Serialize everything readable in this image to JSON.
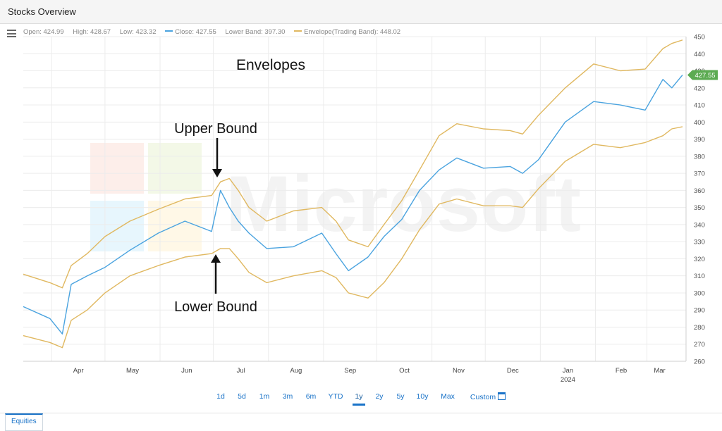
{
  "app": {
    "title": "Stocks Overview"
  },
  "info_bar": {
    "open": "Open: 424.99",
    "high": "High: 428.67",
    "low": "Low: 423.32",
    "close": "Close: 427.55",
    "lower_band": "Lower Band: 397.30",
    "envelope": "Envelope(Trading Band): 448.02"
  },
  "colors": {
    "close_line": "#4aa3df",
    "envelope": "#e0b860",
    "price_tag": "#5cab52",
    "link": "#1a73c8"
  },
  "annotations": {
    "heading": "Envelopes",
    "upper": "Upper Bound",
    "lower": "Lower Bound"
  },
  "watermark": "Microsoft",
  "range_buttons": [
    "1d",
    "5d",
    "1m",
    "3m",
    "6m",
    "YTD",
    "1y",
    "2y",
    "5y",
    "10y",
    "Max",
    "Custom"
  ],
  "range_selected": "1y",
  "tabs": [
    "Equities"
  ],
  "chart_data": {
    "type": "line",
    "title": "",
    "xlabel": "",
    "ylabel": "",
    "ylim": [
      260,
      450
    ],
    "yticks": [
      260,
      270,
      280,
      290,
      300,
      310,
      320,
      330,
      340,
      350,
      360,
      370,
      380,
      390,
      400,
      410,
      420,
      430,
      440,
      450
    ],
    "x_tick_labels": [
      "Apr",
      "May",
      "Jun",
      "Jul",
      "Aug",
      "Sep",
      "Oct",
      "Nov",
      "Dec",
      "Jan",
      "Feb",
      "Mar"
    ],
    "x_year_label": "2024",
    "grid": true,
    "last_price": "427.55",
    "dates": [
      "2023-03-16",
      "2023-03-31",
      "2023-04-07",
      "2023-04-12",
      "2023-04-21",
      "2023-05-01",
      "2023-05-15",
      "2023-05-31",
      "2023-06-15",
      "2023-06-30",
      "2023-07-05",
      "2023-07-10",
      "2023-07-15",
      "2023-07-21",
      "2023-07-31",
      "2023-08-15",
      "2023-08-31",
      "2023-09-08",
      "2023-09-15",
      "2023-09-26",
      "2023-10-05",
      "2023-10-15",
      "2023-10-25",
      "2023-11-05",
      "2023-11-15",
      "2023-11-30",
      "2023-12-15",
      "2023-12-22",
      "2023-12-31",
      "2024-01-15",
      "2024-01-31",
      "2024-02-15",
      "2024-02-29",
      "2024-03-10",
      "2024-03-15",
      "2024-03-21"
    ],
    "series": [
      {
        "name": "Close",
        "values": [
          292,
          285,
          276,
          305,
          310,
          315,
          325,
          335,
          342,
          336,
          360,
          350,
          342,
          335,
          326,
          327,
          335,
          323,
          313,
          321,
          333,
          343,
          360,
          372,
          379,
          373,
          374,
          370,
          378,
          400,
          412,
          410,
          407,
          425,
          420,
          427.55
        ]
      },
      {
        "name": "Envelope(Trading Band)",
        "values": [
          311,
          306,
          303,
          316,
          323,
          333,
          342,
          349,
          355,
          357,
          365,
          367,
          360,
          350,
          342,
          348,
          350,
          342,
          331,
          327,
          340,
          354,
          372,
          392,
          399,
          396,
          395,
          393,
          404,
          420,
          434,
          430,
          431,
          443,
          446,
          448.02
        ]
      },
      {
        "name": "Lower Band",
        "values": [
          275,
          271,
          268,
          284,
          290,
          300,
          310,
          316,
          321,
          323,
          326,
          326,
          320,
          312,
          306,
          310,
          313,
          309,
          300,
          297,
          306,
          320,
          337,
          352,
          355,
          351,
          351,
          350,
          361,
          377,
          387,
          385,
          388,
          392,
          396,
          397.3
        ]
      }
    ]
  }
}
